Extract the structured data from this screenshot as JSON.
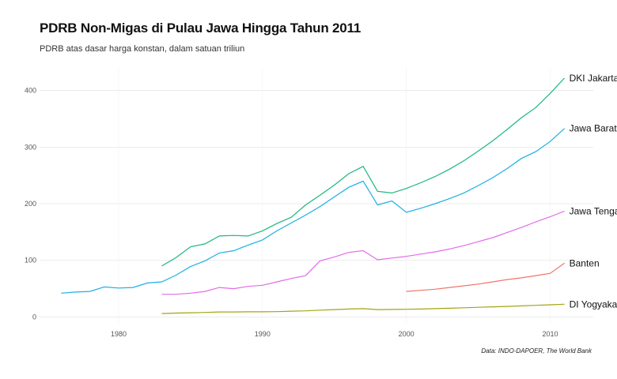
{
  "chart_data": {
    "type": "line",
    "title": "PDRB Non-Migas di Pulau Jawa Hingga Tahun 2011",
    "subtitle": "PDRB atas dasar harga konstan, dalam satuan triliun",
    "caption": "Data: INDO-DAPOER, The World Bank",
    "xlabel": "",
    "ylabel": "",
    "xlim": [
      1974.5,
      2013
    ],
    "ylim": [
      -12,
      440
    ],
    "x_ticks": [
      1980,
      1990,
      2000,
      2010
    ],
    "y_ticks": [
      0,
      100,
      200,
      300,
      400
    ],
    "grid": true,
    "legend": "direct labels at line ends",
    "series": [
      {
        "name": "DKI Jakarta",
        "color": "#1bb87a",
        "x": [
          1983,
          1984,
          1985,
          1986,
          1987,
          1988,
          1989,
          1990,
          1991,
          1992,
          1993,
          1994,
          1995,
          1996,
          1997,
          1998,
          1999,
          2000,
          2001,
          2002,
          2003,
          2004,
          2005,
          2006,
          2007,
          2008,
          2009,
          2010,
          2011
        ],
        "y": [
          90,
          105,
          124,
          129,
          143,
          144,
          143,
          152,
          165,
          176,
          198,
          215,
          233,
          253,
          266,
          222,
          219,
          227,
          237,
          248,
          261,
          276,
          293,
          311,
          331,
          352,
          370,
          395,
          422
        ]
      },
      {
        "name": "Jawa Barat",
        "color": "#1ab0e6",
        "x": [
          1976,
          1977,
          1978,
          1979,
          1980,
          1981,
          1982,
          1983,
          1984,
          1985,
          1986,
          1987,
          1988,
          1989,
          1990,
          1991,
          1992,
          1993,
          1994,
          1995,
          1996,
          1997,
          1998,
          1999,
          2000,
          2001,
          2002,
          2003,
          2004,
          2005,
          2006,
          2007,
          2008,
          2009,
          2010,
          2011
        ],
        "y": [
          42,
          44,
          45,
          53,
          51,
          52,
          60,
          62,
          74,
          89,
          99,
          113,
          117,
          127,
          136,
          152,
          166,
          180,
          195,
          212,
          229,
          240,
          198,
          205,
          185,
          192,
          200,
          209,
          219,
          232,
          246,
          262,
          280,
          292,
          310,
          333
        ]
      },
      {
        "name": "Jawa Tengah",
        "color": "#e36be8",
        "x": [
          1983,
          1984,
          1985,
          1986,
          1987,
          1988,
          1989,
          1990,
          1991,
          1992,
          1993,
          1994,
          1995,
          1996,
          1997,
          1998,
          1999,
          2000,
          2001,
          2002,
          2003,
          2004,
          2005,
          2006,
          2007,
          2008,
          2009,
          2010,
          2011
        ],
        "y": [
          40,
          40,
          42,
          45,
          52,
          50,
          54,
          56,
          62,
          68,
          73,
          99,
          106,
          114,
          117,
          101,
          104,
          107,
          111,
          115,
          120,
          126,
          133,
          140,
          149,
          158,
          168,
          177,
          187
        ]
      },
      {
        "name": "Banten",
        "color": "#f07468",
        "x": [
          2000,
          2001,
          2002,
          2003,
          2004,
          2005,
          2006,
          2007,
          2008,
          2009,
          2010,
          2011
        ],
        "y": [
          45,
          47,
          49,
          52,
          55,
          58,
          62,
          66,
          69,
          73,
          77,
          95
        ]
      },
      {
        "name": "DI Yogyakarta",
        "color": "#a3a512",
        "x": [
          1983,
          1984,
          1985,
          1986,
          1987,
          1988,
          1989,
          1990,
          1991,
          1992,
          1993,
          1994,
          1995,
          1996,
          1997,
          1998,
          1999,
          2000,
          2001,
          2002,
          2003,
          2004,
          2005,
          2006,
          2007,
          2008,
          2009,
          2010,
          2011
        ],
        "y": [
          6,
          6.8,
          7.4,
          8,
          8.8,
          8.8,
          9,
          9,
          9.4,
          10.2,
          10.8,
          12,
          13,
          14,
          14.6,
          13,
          13.2,
          13.5,
          14,
          14.7,
          15.4,
          16.2,
          17,
          17.8,
          18.6,
          19.5,
          20.5,
          21.5,
          22.5
        ]
      }
    ]
  }
}
